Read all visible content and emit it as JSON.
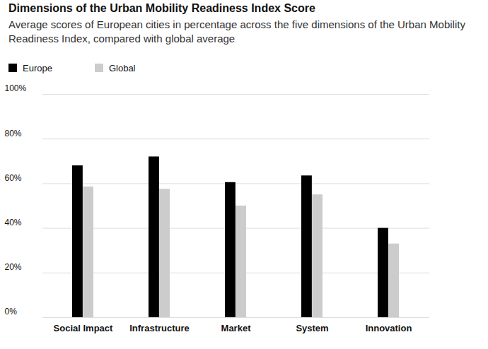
{
  "chart_data": {
    "type": "bar",
    "title": "Dimensions of the Urban Mobility Readiness Index Score",
    "subtitle": "Average scores of European cities in percentage across the five dimensions of the Urban Mobility Readiness Index, compared with global average",
    "categories": [
      "Social Impact",
      "Infrastructure",
      "Market",
      "System",
      "Innovation"
    ],
    "series": [
      {
        "name": "Europe",
        "color": "#000000",
        "values": [
          68,
          72,
          60.5,
          63.5,
          40
        ]
      },
      {
        "name": "Global",
        "color": "#cccccc",
        "values": [
          58.5,
          57.5,
          50,
          55,
          33
        ]
      }
    ],
    "ylim": [
      0,
      100
    ],
    "yticks": [
      {
        "value": 0,
        "label": "0%"
      },
      {
        "value": 20,
        "label": "20%"
      },
      {
        "value": 40,
        "label": "40%"
      },
      {
        "value": 60,
        "label": "60%"
      },
      {
        "value": 80,
        "label": "80%"
      },
      {
        "value": 100,
        "label": "100%"
      }
    ],
    "grid": true,
    "legend": "top-left"
  }
}
